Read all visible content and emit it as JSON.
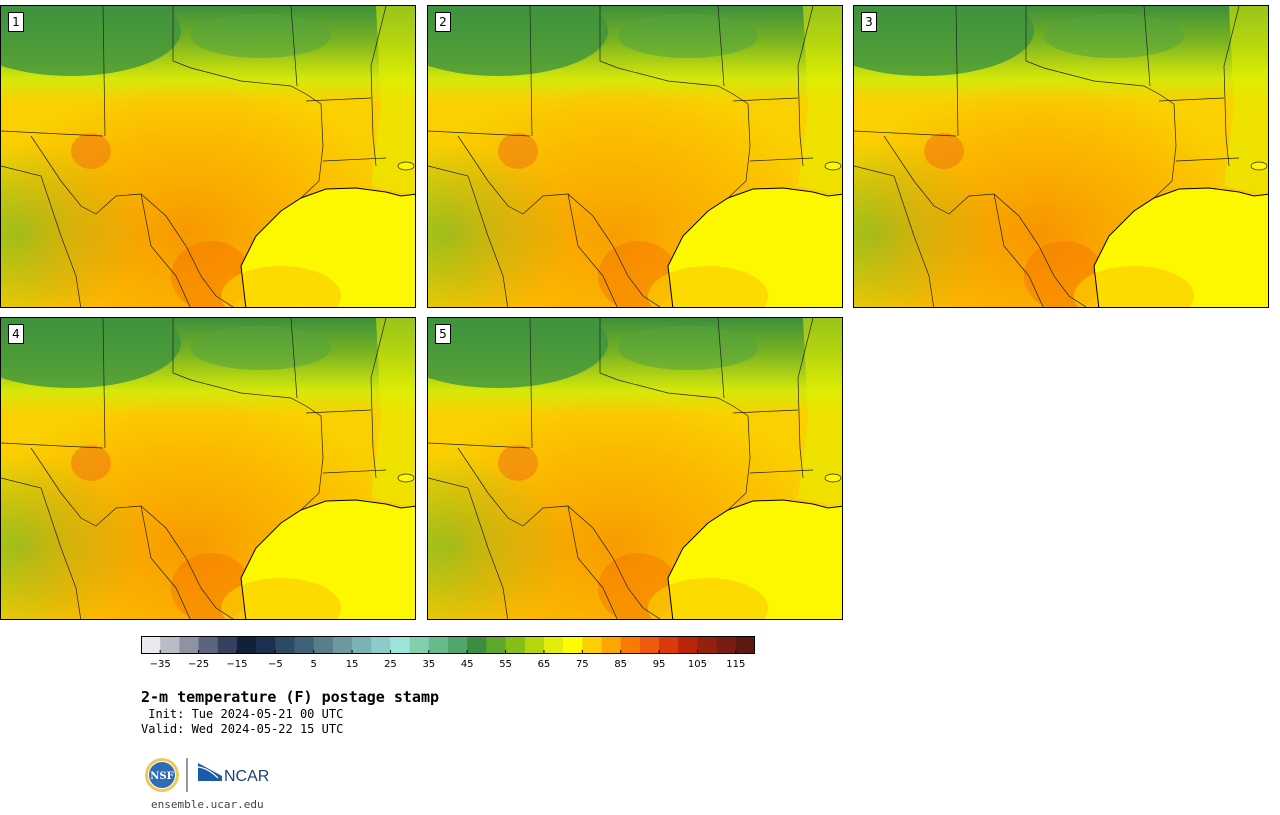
{
  "panels": [
    {
      "label": "1",
      "heat": 0.62
    },
    {
      "label": "2",
      "heat": 0.55
    },
    {
      "label": "3",
      "heat": 0.66
    },
    {
      "label": "4",
      "heat": 0.6
    },
    {
      "label": "5",
      "heat": 0.58
    }
  ],
  "colorbar": {
    "colors": [
      "#e8eaed",
      "#b9bcc6",
      "#8e93a3",
      "#5c6480",
      "#35415f",
      "#11213a",
      "#1c3050",
      "#2d4a63",
      "#3e6378",
      "#567f8a",
      "#6a9aa0",
      "#7bb2b3",
      "#8ccbc8",
      "#9ee3dc",
      "#80cfad",
      "#68ba8c",
      "#52a46d",
      "#3b8e3d",
      "#5fa62d",
      "#86bd18",
      "#b5d60b",
      "#e3ec0a",
      "#fefc00",
      "#fecf00",
      "#fea600",
      "#f97c00",
      "#ef5a0c",
      "#d93a0a",
      "#b82508",
      "#962010",
      "#7a1c14",
      "#5f180f"
    ],
    "tick_labels": [
      "−35",
      "−25",
      "−15",
      "−5",
      "5",
      "15",
      "25",
      "35",
      "45",
      "55",
      "65",
      "75",
      "85",
      "95",
      "105",
      "115"
    ],
    "tick_values": [
      -35,
      -25,
      -15,
      -5,
      5,
      15,
      25,
      35,
      45,
      55,
      65,
      75,
      85,
      95,
      105,
      115
    ],
    "min": -40,
    "max": 120
  },
  "title": "2-m temperature (F) postage stamp",
  "init_line": " Init: Tue 2024-05-21 00 UTC",
  "valid_line": "Valid: Wed 2024-05-22 15 UTC",
  "logos": {
    "nsf": "NSF",
    "ncar": "NCAR"
  },
  "url": "ensemble.ucar.edu"
}
